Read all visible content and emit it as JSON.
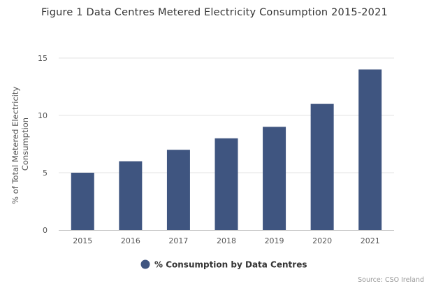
{
  "chart_data": {
    "type": "bar",
    "title": "Figure 1 Data Centres Metered Electricity Consumption 2015-2021",
    "ylabel": "% of Total Metered Electricity Consumption",
    "ylabel_lines": [
      "% of Total Metered Electricity",
      "Consumption"
    ],
    "xlabel": "",
    "categories": [
      "2015",
      "2016",
      "2017",
      "2018",
      "2019",
      "2020",
      "2021"
    ],
    "series": [
      {
        "name": "% Consumption by Data Centres",
        "values": [
          5,
          6,
          7,
          8,
          9,
          11,
          14
        ],
        "color": "#3f5580"
      }
    ],
    "ylim": [
      0,
      15
    ],
    "yticks": [
      0,
      5,
      10,
      15
    ],
    "grid": true,
    "legend_position": "bottom-center",
    "source": "Source: CSO Ireland"
  }
}
